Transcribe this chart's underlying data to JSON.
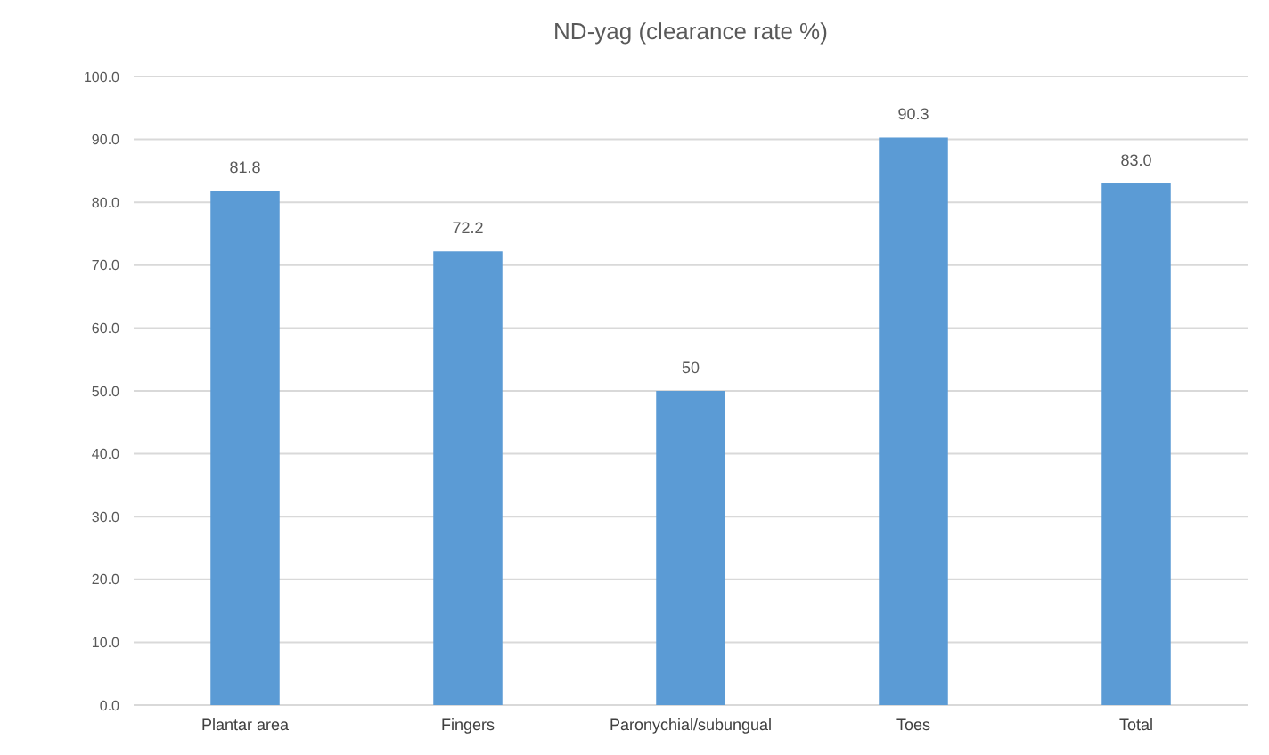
{
  "chart_data": {
    "type": "bar",
    "title": "ND-yag (clearance rate %)",
    "categories": [
      "Plantar area",
      "Fingers",
      "Paronychial/subungual",
      "Toes",
      "Total"
    ],
    "values": [
      81.8,
      72.2,
      50,
      90.3,
      83.0
    ],
    "value_labels": [
      "81.8",
      "72.2",
      "50",
      "90.3",
      "83.0"
    ],
    "color": "#5b9bd5",
    "ylim": [
      0,
      100
    ],
    "yticks": [
      {
        "value": 0,
        "label": "0.0"
      },
      {
        "value": 10,
        "label": "10.0"
      },
      {
        "value": 20,
        "label": "20.0"
      },
      {
        "value": 30,
        "label": "30.0"
      },
      {
        "value": 40,
        "label": "40.0"
      },
      {
        "value": 50,
        "label": "50.0"
      },
      {
        "value": 60,
        "label": "60.0"
      },
      {
        "value": 70,
        "label": "70.0"
      },
      {
        "value": 80,
        "label": "80.0"
      },
      {
        "value": 90,
        "label": "90.0"
      },
      {
        "value": 100,
        "label": "100.0"
      }
    ],
    "grid": true
  }
}
